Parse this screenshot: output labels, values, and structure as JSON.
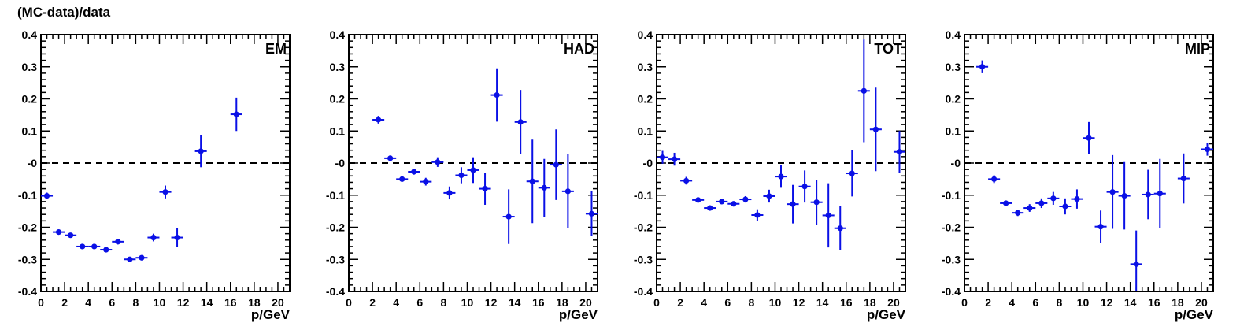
{
  "figure": {
    "ylabel": "(MC-data)/data",
    "xlabel": "p/GeV"
  },
  "chart_data": [
    {
      "type": "scatter",
      "title": "EM",
      "xlabel": "p/GeV",
      "ylabel": "(MC-data)/data",
      "xlim": [
        0,
        21
      ],
      "ylim": [
        -0.4,
        0.4
      ],
      "x_ticks": [
        0,
        2,
        4,
        6,
        8,
        10,
        12,
        14,
        16,
        18,
        20
      ],
      "y_ticks": [
        -0.4,
        -0.3,
        -0.2,
        -0.1,
        0,
        0.1,
        0.2,
        0.3,
        0.4
      ],
      "y_tick_labels": [
        "-0.4",
        "-0.3",
        "-0.2",
        "-0.1",
        "-0",
        "0.1",
        "0.2",
        "0.3",
        "0.4"
      ],
      "reference_line": 0,
      "points": [
        {
          "x": 0.5,
          "y": -0.102,
          "yerr": 0.01
        },
        {
          "x": 1.5,
          "y": -0.215,
          "yerr": 0.005
        },
        {
          "x": 2.5,
          "y": -0.225,
          "yerr": 0.005
        },
        {
          "x": 3.5,
          "y": -0.26,
          "yerr": 0.005
        },
        {
          "x": 4.5,
          "y": -0.26,
          "yerr": 0.005
        },
        {
          "x": 5.5,
          "y": -0.27,
          "yerr": 0.006
        },
        {
          "x": 6.5,
          "y": -0.245,
          "yerr": 0.007
        },
        {
          "x": 7.5,
          "y": -0.3,
          "yerr": 0.006
        },
        {
          "x": 8.5,
          "y": -0.295,
          "yerr": 0.008
        },
        {
          "x": 9.5,
          "y": -0.232,
          "yerr": 0.012
        },
        {
          "x": 10.5,
          "y": -0.09,
          "yerr": 0.02
        },
        {
          "x": 11.5,
          "y": -0.232,
          "yerr": 0.03
        },
        {
          "x": 13.5,
          "y": 0.037,
          "yerr": 0.05
        },
        {
          "x": 16.5,
          "y": 0.152,
          "yerr": 0.052
        }
      ]
    },
    {
      "type": "scatter",
      "title": "HAD",
      "xlabel": "p/GeV",
      "xlim": [
        0,
        21
      ],
      "ylim": [
        -0.4,
        0.4
      ],
      "x_ticks": [
        0,
        2,
        4,
        6,
        8,
        10,
        12,
        14,
        16,
        18,
        20
      ],
      "y_ticks": [
        -0.4,
        -0.3,
        -0.2,
        -0.1,
        0,
        0.1,
        0.2,
        0.3,
        0.4
      ],
      "y_tick_labels": [
        "-0.4",
        "-0.3",
        "-0.2",
        "-0.1",
        "-0",
        "0.1",
        "0.2",
        "0.3",
        "0.4"
      ],
      "reference_line": 0,
      "points": [
        {
          "x": 2.5,
          "y": 0.135,
          "yerr": 0.012
        },
        {
          "x": 3.5,
          "y": 0.015,
          "yerr": 0.008
        },
        {
          "x": 4.5,
          "y": -0.05,
          "yerr": 0.006
        },
        {
          "x": 5.5,
          "y": -0.027,
          "yerr": 0.009
        },
        {
          "x": 6.5,
          "y": -0.058,
          "yerr": 0.012
        },
        {
          "x": 7.5,
          "y": 0.003,
          "yerr": 0.015
        },
        {
          "x": 8.5,
          "y": -0.093,
          "yerr": 0.02
        },
        {
          "x": 9.5,
          "y": -0.038,
          "yerr": 0.025
        },
        {
          "x": 10.5,
          "y": -0.022,
          "yerr": 0.04
        },
        {
          "x": 11.5,
          "y": -0.08,
          "yerr": 0.05
        },
        {
          "x": 12.5,
          "y": 0.212,
          "yerr": 0.083
        },
        {
          "x": 13.5,
          "y": -0.167,
          "yerr": 0.085
        },
        {
          "x": 14.5,
          "y": 0.128,
          "yerr": 0.1
        },
        {
          "x": 15.5,
          "y": -0.057,
          "yerr": 0.13
        },
        {
          "x": 16.5,
          "y": -0.077,
          "yerr": 0.09
        },
        {
          "x": 17.5,
          "y": -0.005,
          "yerr": 0.11
        },
        {
          "x": 18.5,
          "y": -0.088,
          "yerr": 0.115
        },
        {
          "x": 20.5,
          "y": -0.158,
          "yerr": 0.07
        }
      ]
    },
    {
      "type": "scatter",
      "title": "TOT",
      "xlabel": "p/GeV",
      "xlim": [
        0,
        21
      ],
      "ylim": [
        -0.4,
        0.4
      ],
      "x_ticks": [
        0,
        2,
        4,
        6,
        8,
        10,
        12,
        14,
        16,
        18,
        20
      ],
      "y_ticks": [
        -0.4,
        -0.3,
        -0.2,
        -0.1,
        0,
        0.1,
        0.2,
        0.3,
        0.4
      ],
      "y_tick_labels": [
        "-0.4",
        "-0.3",
        "-0.2",
        "-0.1",
        "-0",
        "0.1",
        "0.2",
        "0.3",
        "0.4"
      ],
      "reference_line": 0,
      "points": [
        {
          "x": 0.5,
          "y": 0.018,
          "yerr": 0.02
        },
        {
          "x": 1.5,
          "y": 0.012,
          "yerr": 0.02
        },
        {
          "x": 2.5,
          "y": -0.055,
          "yerr": 0.012
        },
        {
          "x": 3.5,
          "y": -0.115,
          "yerr": 0.006
        },
        {
          "x": 4.5,
          "y": -0.14,
          "yerr": 0.005
        },
        {
          "x": 5.5,
          "y": -0.12,
          "yerr": 0.007
        },
        {
          "x": 6.5,
          "y": -0.127,
          "yerr": 0.008
        },
        {
          "x": 7.5,
          "y": -0.113,
          "yerr": 0.01
        },
        {
          "x": 8.5,
          "y": -0.162,
          "yerr": 0.018
        },
        {
          "x": 9.5,
          "y": -0.103,
          "yerr": 0.02
        },
        {
          "x": 10.5,
          "y": -0.042,
          "yerr": 0.035
        },
        {
          "x": 11.5,
          "y": -0.128,
          "yerr": 0.06
        },
        {
          "x": 12.5,
          "y": -0.073,
          "yerr": 0.05
        },
        {
          "x": 13.5,
          "y": -0.122,
          "yerr": 0.07
        },
        {
          "x": 14.5,
          "y": -0.163,
          "yerr": 0.1
        },
        {
          "x": 15.5,
          "y": -0.203,
          "yerr": 0.068
        },
        {
          "x": 16.5,
          "y": -0.032,
          "yerr": 0.072
        },
        {
          "x": 17.5,
          "y": 0.225,
          "yerr": 0.16
        },
        {
          "x": 18.5,
          "y": 0.105,
          "yerr": 0.13
        },
        {
          "x": 20.5,
          "y": 0.035,
          "yerr": 0.065
        }
      ]
    },
    {
      "type": "scatter",
      "title": "MIP",
      "xlabel": "p/GeV",
      "xlim": [
        0,
        21
      ],
      "ylim": [
        -0.4,
        0.4
      ],
      "x_ticks": [
        0,
        2,
        4,
        6,
        8,
        10,
        12,
        14,
        16,
        18,
        20
      ],
      "y_ticks": [
        -0.4,
        -0.3,
        -0.2,
        -0.1,
        0,
        0.1,
        0.2,
        0.3,
        0.4
      ],
      "y_tick_labels": [
        "-0.4",
        "-0.3",
        "-0.2",
        "-0.1",
        "-0",
        "0.1",
        "0.2",
        "0.3",
        "0.4"
      ],
      "reference_line": 0,
      "points": [
        {
          "x": 1.5,
          "y": 0.3,
          "yerr": 0.02
        },
        {
          "x": 2.5,
          "y": -0.05,
          "yerr": 0.012
        },
        {
          "x": 3.5,
          "y": -0.125,
          "yerr": 0.008
        },
        {
          "x": 4.5,
          "y": -0.155,
          "yerr": 0.01
        },
        {
          "x": 5.5,
          "y": -0.14,
          "yerr": 0.012
        },
        {
          "x": 6.5,
          "y": -0.125,
          "yerr": 0.015
        },
        {
          "x": 7.5,
          "y": -0.11,
          "yerr": 0.02
        },
        {
          "x": 8.5,
          "y": -0.135,
          "yerr": 0.025
        },
        {
          "x": 9.5,
          "y": -0.112,
          "yerr": 0.03
        },
        {
          "x": 10.5,
          "y": 0.078,
          "yerr": 0.05
        },
        {
          "x": 11.5,
          "y": -0.198,
          "yerr": 0.05
        },
        {
          "x": 12.5,
          "y": -0.09,
          "yerr": 0.115
        },
        {
          "x": 13.5,
          "y": -0.102,
          "yerr": 0.105
        },
        {
          "x": 14.5,
          "y": -0.315,
          "yerr": 0.105
        },
        {
          "x": 15.5,
          "y": -0.098,
          "yerr": 0.077
        },
        {
          "x": 16.5,
          "y": -0.095,
          "yerr": 0.108
        },
        {
          "x": 18.5,
          "y": -0.048,
          "yerr": 0.078
        },
        {
          "x": 20.5,
          "y": 0.043,
          "yerr": 0.02
        }
      ]
    }
  ]
}
